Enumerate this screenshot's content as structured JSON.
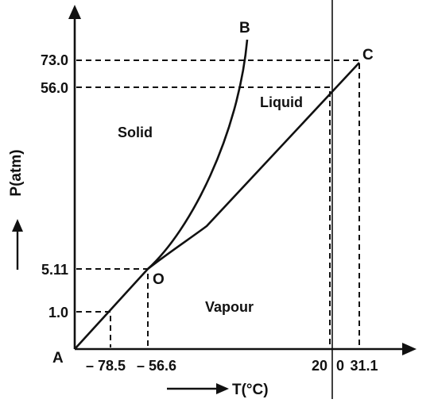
{
  "points": {
    "a": "A",
    "b": "B",
    "c": "C",
    "o": "O"
  },
  "regions": {
    "solid": "Solid",
    "liquid": "Liquid",
    "vapour": "Vapour"
  },
  "y_ticks": {
    "p73": "73.0",
    "p56": "56.0",
    "p511": "5.11",
    "p1": "1.0"
  },
  "x_ticks": {
    "t785": "– 78.5",
    "t566": "– 56.6",
    "t20": "20",
    "t0": "0",
    "t311": "31.1"
  },
  "axes": {
    "pressure": "P(atm)",
    "temperature": "T(°C)"
  }
}
